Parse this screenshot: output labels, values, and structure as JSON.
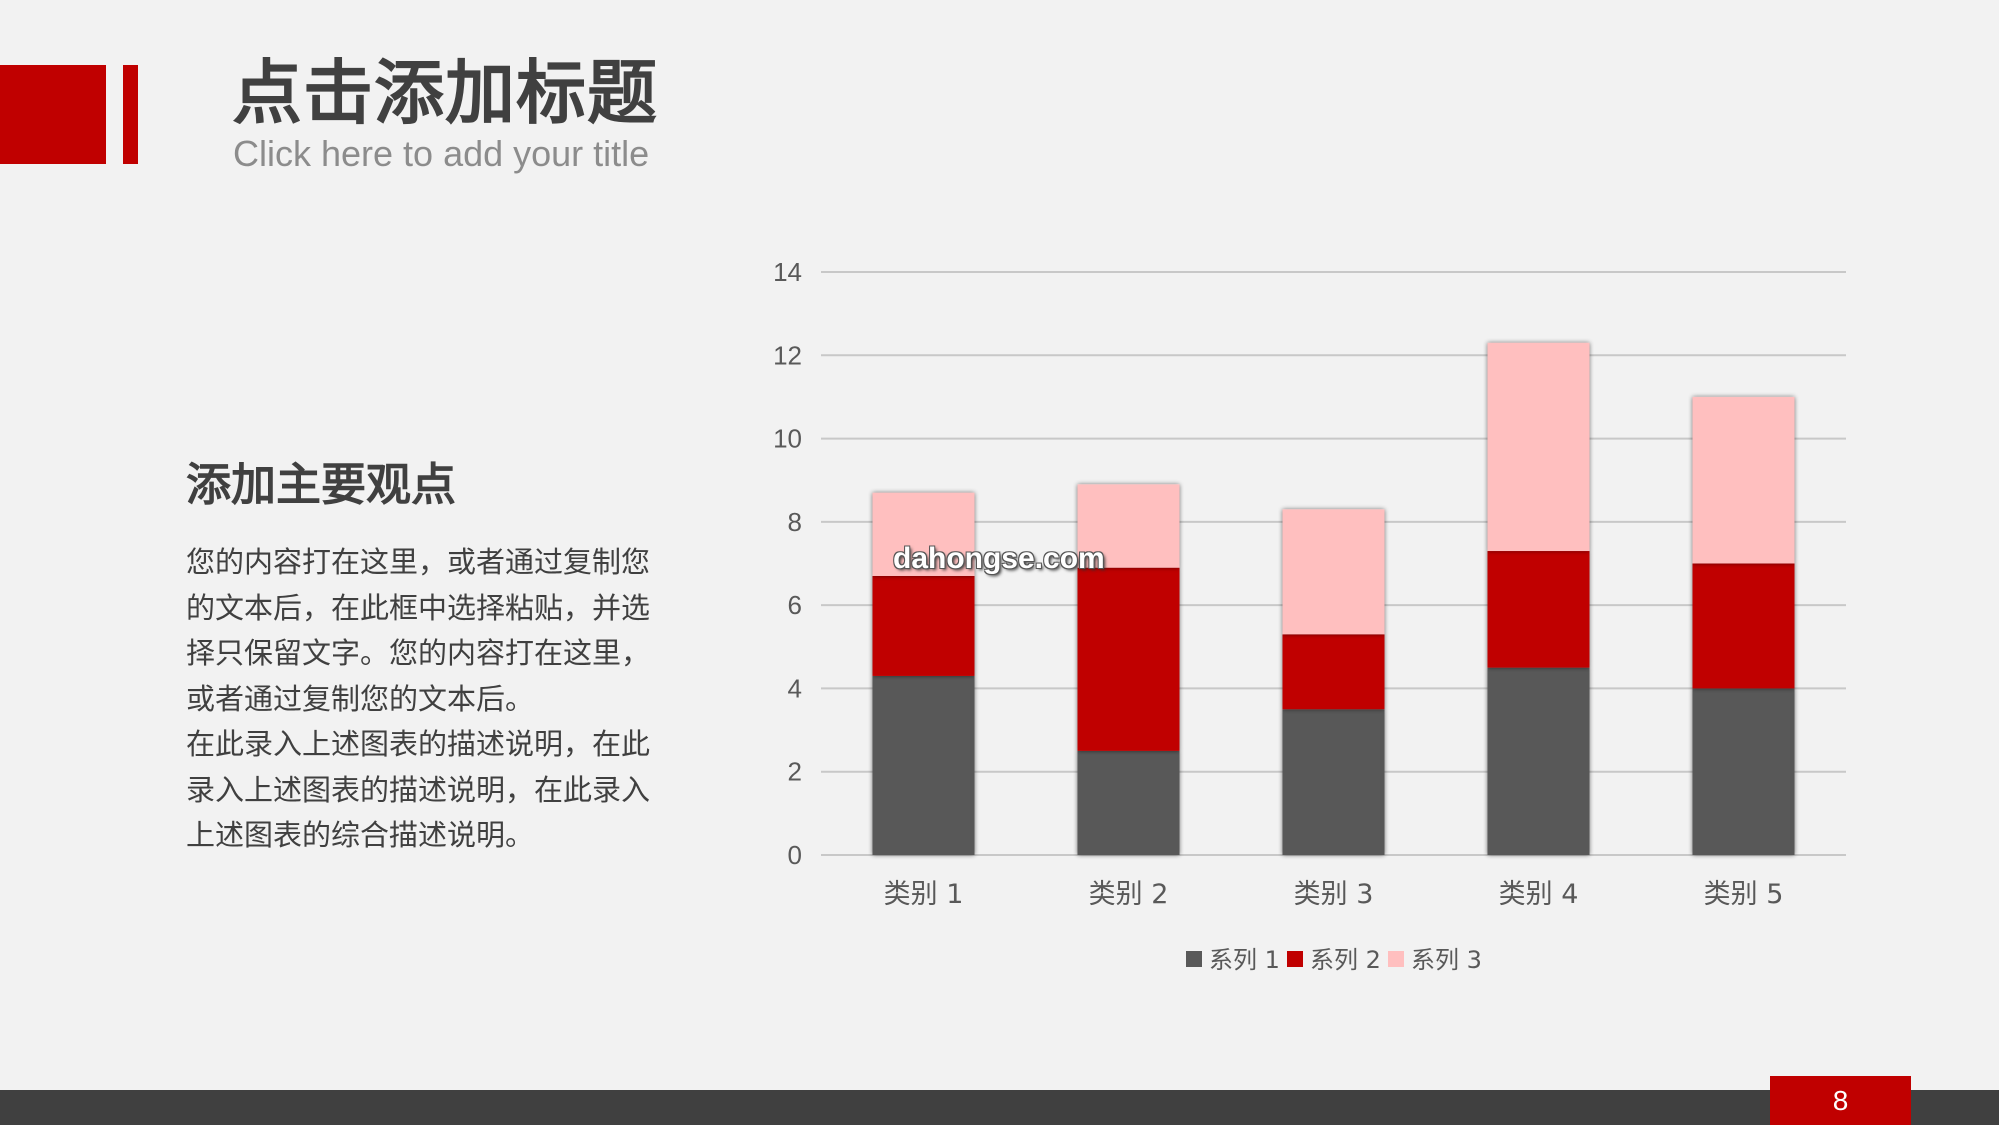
{
  "slide": {
    "title_cn": "点击添加标题",
    "title_en": "Click here to add your title",
    "point_heading": "添加主要观点",
    "paragraph_1": "您的内容打在这里，或者通过复制您的文本后，在此框中选择粘贴，并选择只保留文字。您的内容打在这里，或者通过复制您的文本后。",
    "paragraph_2": "在此录入上述图表的描述说明，在此录入上述图表的描述说明，在此录入上述图表的综合描述说明。",
    "watermark": "dahongse.com",
    "page_number": "8"
  },
  "colors": {
    "accent": "#c00000",
    "series_1": "#595959",
    "series_2": "#c00000",
    "series_3": "#ffbfbf",
    "text_dark": "#404040",
    "footer": "#404040"
  },
  "chart_data": {
    "type": "bar",
    "stacked": true,
    "categories": [
      "类别 1",
      "类别 2",
      "类别 3",
      "类别 4",
      "类别 5"
    ],
    "series": [
      {
        "name": "系列 1",
        "values": [
          4.3,
          2.5,
          3.5,
          4.5,
          4.0
        ]
      },
      {
        "name": "系列 2",
        "values": [
          2.4,
          4.4,
          1.8,
          2.8,
          3.0
        ]
      },
      {
        "name": "系列 3",
        "values": [
          2.0,
          2.0,
          3.0,
          5.0,
          4.0
        ]
      }
    ],
    "yticks": [
      "0",
      "2",
      "4",
      "6",
      "8",
      "10",
      "12",
      "14"
    ],
    "ylim": [
      0,
      14
    ],
    "grid": true,
    "legend_position": "bottom"
  }
}
